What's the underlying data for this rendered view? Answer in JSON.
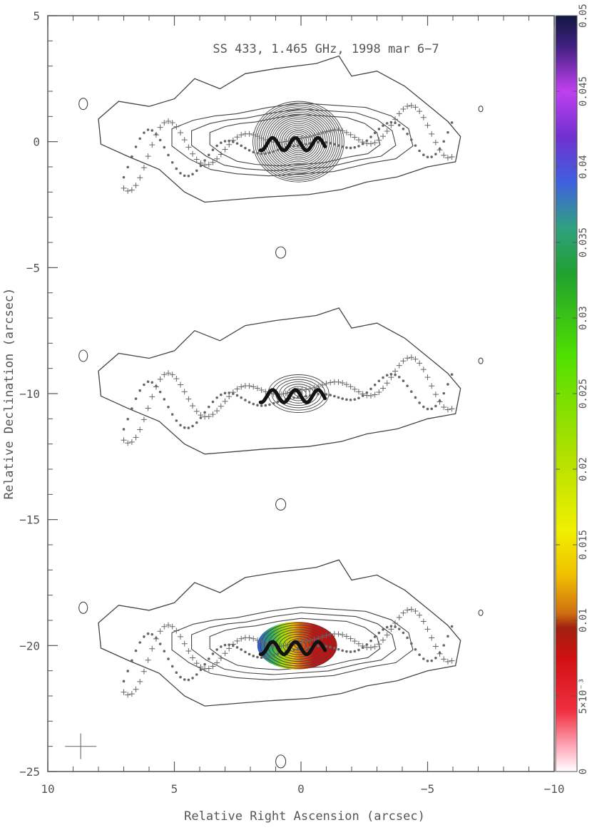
{
  "chart_data": {
    "type": "contour",
    "title": "SS 433, 1.465 GHz, 1998 mar 6−7",
    "xlabel": "Relative Right Ascension (arcsec)",
    "ylabel": "Relative Declination (arcsec)",
    "xlim": [
      10,
      -10
    ],
    "ylim": [
      -25,
      5
    ],
    "x_ticks": [
      10,
      5,
      0,
      -5,
      -10
    ],
    "x_tick_labels": [
      "10",
      "5",
      "0",
      "−5",
      "−10"
    ],
    "y_ticks": [
      5,
      0,
      -5,
      -10,
      -15,
      -20,
      -25
    ],
    "y_tick_labels": [
      "5",
      "0",
      "−5",
      "−10",
      "−15",
      "−20",
      "−25"
    ],
    "grid": false,
    "colorbar": {
      "range": [
        0,
        0.05
      ],
      "ticks": [
        0,
        0.005,
        0.01,
        0.015,
        0.02,
        0.025,
        0.03,
        0.035,
        0.04,
        0.045,
        0.05
      ],
      "tick_labels": [
        "0",
        "5×10⁻³",
        "0.01",
        "0.015",
        "0.02",
        "0.025",
        "0.03",
        "0.035",
        "0.04",
        "0.045",
        "0.05"
      ],
      "colors": [
        "#ffffff",
        "#ffb0c0",
        "#e81020",
        "#c01010",
        "#c06010",
        "#e0b000",
        "#f0f000",
        "#a0e000",
        "#30d000",
        "#20a040",
        "#3060e0",
        "#8020c0",
        "#c040e0",
        "#102060"
      ]
    },
    "panels": [
      {
        "name": "top",
        "center": [
          0,
          0
        ],
        "core_rings": 22,
        "core_radius": [
          1.8,
          1.6
        ]
      },
      {
        "name": "middle",
        "center": [
          0,
          -10
        ],
        "core_rings": 8,
        "core_radius": [
          1.2,
          0.75
        ]
      },
      {
        "name": "bottom",
        "center": [
          0,
          -20
        ],
        "core_rings": 10,
        "core_radius": [
          1.5,
          0.9
        ],
        "colored_core": true
      }
    ]
  }
}
